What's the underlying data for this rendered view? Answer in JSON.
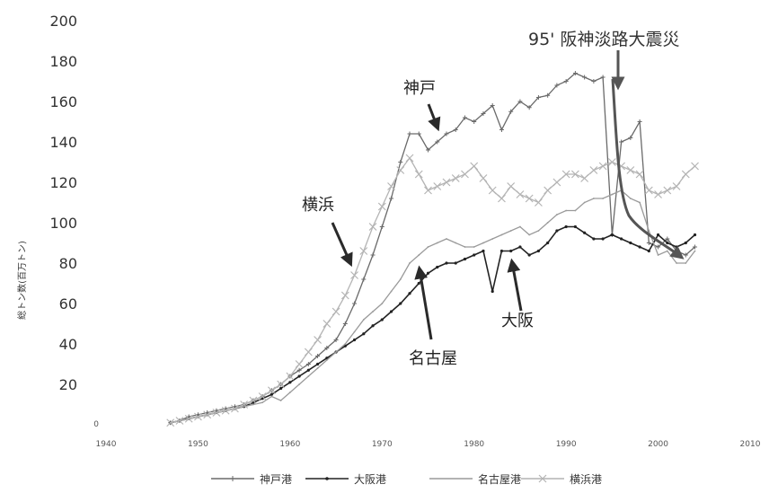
{
  "chart_data": {
    "type": "line",
    "title": "",
    "xlabel": "",
    "ylabel": "総トン数(百万トン)",
    "xlim": [
      1940,
      2010
    ],
    "ylim": [
      0,
      200
    ],
    "x_ticks": [
      1940,
      1950,
      1960,
      1970,
      1980,
      1990,
      2000,
      2010
    ],
    "y_ticks": [
      0,
      20,
      40,
      60,
      80,
      100,
      120,
      140,
      160,
      180,
      200
    ],
    "y_tick_labels": [
      "0",
      "20",
      "40",
      "60",
      "80",
      "100",
      "120",
      "140",
      "160",
      "180",
      "200"
    ],
    "grid": false,
    "legend_position": "bottom",
    "series": [
      {
        "name": "神戸港",
        "color": "#6a6a6a",
        "x": [
          1947,
          1948,
          1949,
          1950,
          1951,
          1952,
          1953,
          1954,
          1955,
          1956,
          1957,
          1958,
          1959,
          1960,
          1961,
          1962,
          1963,
          1964,
          1965,
          1966,
          1967,
          1968,
          1969,
          1970,
          1971,
          1972,
          1973,
          1974,
          1975,
          1976,
          1977,
          1978,
          1979,
          1980,
          1981,
          1982,
          1983,
          1984,
          1985,
          1986,
          1987,
          1988,
          1989,
          1990,
          1991,
          1992,
          1993,
          1994,
          1995,
          1996,
          1997,
          1998,
          1999,
          2000,
          2001,
          2002,
          2003,
          2004
        ],
        "y": [
          1,
          2,
          4,
          5,
          6,
          7,
          8,
          9,
          10,
          12,
          14,
          17,
          20,
          24,
          27,
          30,
          34,
          38,
          42,
          50,
          60,
          72,
          84,
          98,
          112,
          130,
          144,
          144,
          136,
          140,
          144,
          146,
          152,
          150,
          154,
          158,
          146,
          155,
          160,
          157,
          162,
          163,
          168,
          170,
          174,
          172,
          170,
          172,
          94,
          140,
          142,
          150,
          90,
          88,
          92,
          86,
          84,
          88
        ]
      },
      {
        "name": "大阪港",
        "color": "#222222",
        "x": [
          1947,
          1948,
          1949,
          1950,
          1951,
          1952,
          1953,
          1954,
          1955,
          1956,
          1957,
          1958,
          1959,
          1960,
          1961,
          1962,
          1963,
          1964,
          1965,
          1966,
          1967,
          1968,
          1969,
          1970,
          1971,
          1972,
          1973,
          1974,
          1975,
          1976,
          1977,
          1978,
          1979,
          1980,
          1981,
          1982,
          1983,
          1984,
          1985,
          1986,
          1987,
          1988,
          1989,
          1990,
          1991,
          1992,
          1993,
          1994,
          1995,
          1996,
          1997,
          1998,
          1999,
          2000,
          2001,
          2002,
          2003,
          2004
        ],
        "y": [
          1,
          2,
          3,
          4,
          5,
          6,
          7,
          8,
          9,
          11,
          13,
          15,
          18,
          21,
          24,
          27,
          30,
          33,
          36,
          39,
          42,
          45,
          49,
          52,
          56,
          60,
          65,
          70,
          75,
          78,
          80,
          80,
          82,
          84,
          86,
          66,
          86,
          86,
          88,
          84,
          86,
          90,
          96,
          98,
          98,
          95,
          92,
          92,
          94,
          92,
          90,
          88,
          86,
          94,
          90,
          88,
          90,
          94
        ]
      },
      {
        "name": "名古屋港",
        "color": "#9a9a9a",
        "x": [
          1947,
          1948,
          1949,
          1950,
          1951,
          1952,
          1953,
          1954,
          1955,
          1956,
          1957,
          1958,
          1959,
          1960,
          1961,
          1962,
          1963,
          1964,
          1965,
          1966,
          1967,
          1968,
          1969,
          1970,
          1971,
          1972,
          1973,
          1974,
          1975,
          1976,
          1977,
          1978,
          1979,
          1980,
          1981,
          1982,
          1983,
          1984,
          1985,
          1986,
          1987,
          1988,
          1989,
          1990,
          1991,
          1992,
          1993,
          1994,
          1995,
          1996,
          1997,
          1998,
          1999,
          2000,
          2001,
          2002,
          2003,
          2004
        ],
        "y": [
          1,
          2,
          3,
          4,
          5,
          6,
          7,
          8,
          9,
          10,
          11,
          14,
          12,
          16,
          20,
          24,
          28,
          32,
          36,
          40,
          46,
          52,
          56,
          60,
          66,
          72,
          80,
          84,
          88,
          90,
          92,
          90,
          88,
          88,
          90,
          92,
          94,
          96,
          98,
          94,
          96,
          100,
          104,
          106,
          106,
          110,
          112,
          112,
          114,
          116,
          112,
          110,
          96,
          84,
          86,
          80,
          80,
          86
        ]
      },
      {
        "name": "横浜港",
        "color": "#b4b4b4",
        "x": [
          1947,
          1948,
          1949,
          1950,
          1951,
          1952,
          1953,
          1954,
          1955,
          1956,
          1957,
          1958,
          1959,
          1960,
          1961,
          1962,
          1963,
          1964,
          1965,
          1966,
          1967,
          1968,
          1969,
          1970,
          1971,
          1972,
          1973,
          1974,
          1975,
          1976,
          1977,
          1978,
          1979,
          1980,
          1981,
          1982,
          1983,
          1984,
          1985,
          1986,
          1987,
          1988,
          1989,
          1990,
          1991,
          1992,
          1993,
          1994,
          1995,
          1996,
          1997,
          1998,
          1999,
          2000,
          2001,
          2002,
          2003,
          2004
        ],
        "y": [
          1,
          2,
          3,
          4,
          5,
          6,
          7,
          8,
          10,
          12,
          14,
          17,
          20,
          24,
          30,
          36,
          42,
          50,
          56,
          64,
          74,
          86,
          98,
          108,
          118,
          126,
          132,
          124,
          116,
          118,
          120,
          122,
          124,
          128,
          122,
          116,
          112,
          118,
          114,
          112,
          110,
          116,
          120,
          124,
          124,
          122,
          126,
          128,
          130,
          128,
          126,
          124,
          116,
          114,
          116,
          118,
          124,
          128
        ]
      }
    ],
    "annotations": [
      {
        "text": "神戸"
      },
      {
        "text": "横浜"
      },
      {
        "text": "名古屋"
      },
      {
        "text": "大阪"
      },
      {
        "text": "95' 阪神淡路大震災"
      }
    ]
  }
}
